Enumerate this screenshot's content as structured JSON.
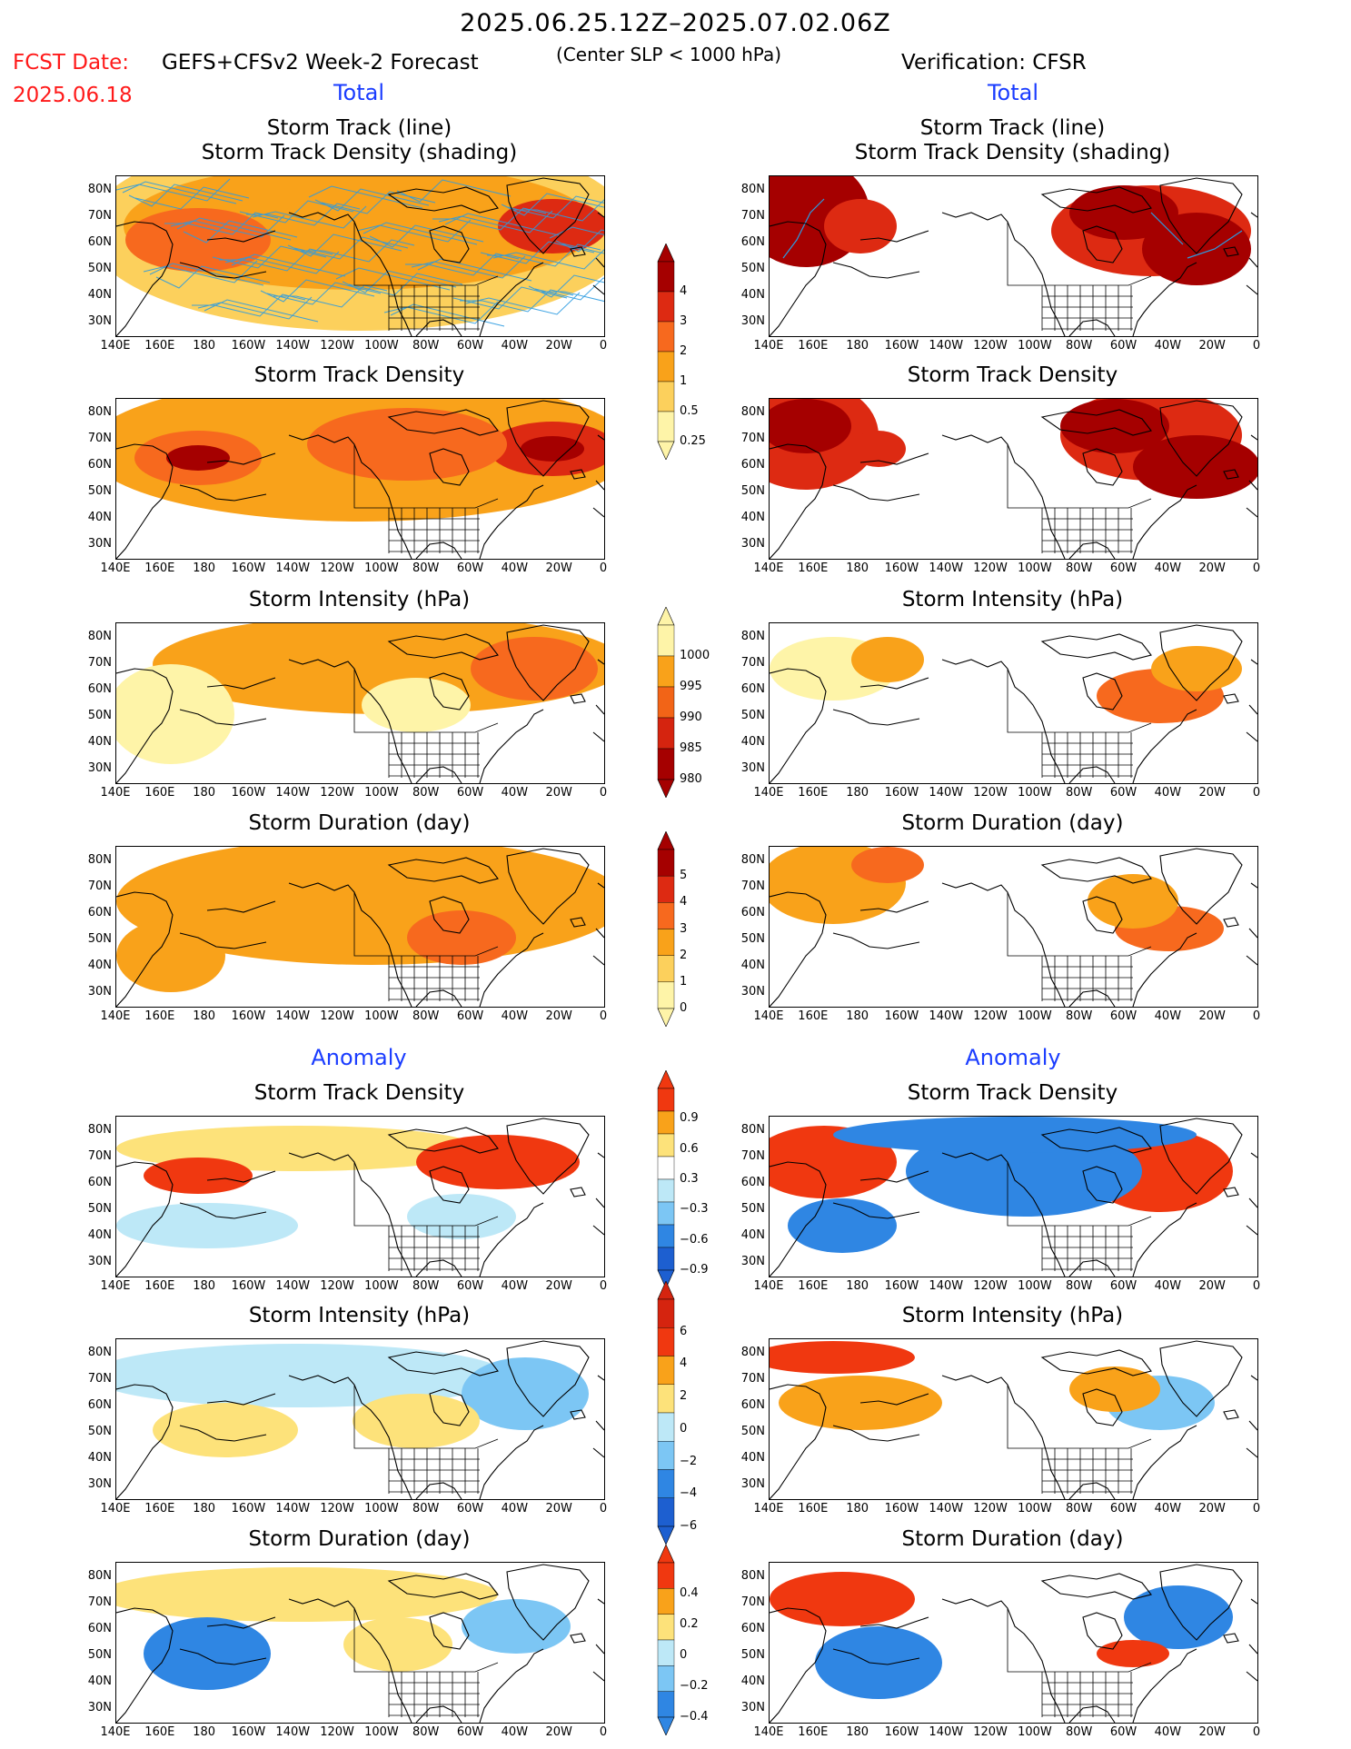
{
  "header": {
    "date_range": "2025.06.25.12Z–2025.07.02.06Z",
    "fcst_label": "FCST Date:",
    "fcst_date": "2025.06.18",
    "model": "GEFS+CFSv2 Week-2 Forecast",
    "slp_note": "(Center SLP < 1000 hPa)",
    "verification": "Verification: CFSR"
  },
  "sections": {
    "total_left": "Total",
    "total_right": "Total",
    "anomaly_left": "Anomaly",
    "anomaly_right": "Anomaly"
  },
  "panels": {
    "track_line": "Storm Track (line)",
    "track_shading": "Storm Track Density (shading)",
    "density": "Storm Track Density",
    "intensity": "Storm Intensity (hPa)",
    "duration": "Storm Duration (day)"
  },
  "axes": {
    "lat_ticks": [
      "80N",
      "70N",
      "60N",
      "50N",
      "40N",
      "30N"
    ],
    "lon_ticks": [
      "140E",
      "160E",
      "180",
      "160W",
      "140W",
      "120W",
      "100W",
      "80W",
      "60W",
      "40W",
      "20W",
      "0"
    ]
  },
  "colorbars": {
    "density_total": {
      "labels": [
        "4",
        "3",
        "2",
        "1",
        "0.5",
        "0.25"
      ],
      "colors": [
        "#a50000",
        "#dd2a12",
        "#f7691e",
        "#f9a21a",
        "#fcd05c",
        "#fef4a8"
      ]
    },
    "intensity_total": {
      "labels": [
        "1000",
        "995",
        "990",
        "985",
        "980"
      ],
      "colors": [
        "#fef4a8",
        "#f9a21a",
        "#f26417",
        "#d5240f",
        "#a50000"
      ]
    },
    "duration_total": {
      "labels": [
        "5",
        "4",
        "3",
        "2",
        "1",
        "0"
      ],
      "colors": [
        "#a50000",
        "#dd2a12",
        "#f7691e",
        "#f9a21a",
        "#fcd05c",
        "#fef4a8"
      ]
    },
    "density_anom": {
      "labels": [
        "0.9",
        "0.6",
        "0.3",
        "−0.3",
        "−0.6",
        "−0.9"
      ],
      "colors": [
        "#f03810",
        "#f9a21a",
        "#fde27a",
        "#ffffff",
        "#bde8f7",
        "#7cc6f4",
        "#2f86e3",
        "#1d5fd0"
      ]
    },
    "intensity_anom": {
      "labels": [
        "6",
        "4",
        "2",
        "0",
        "−2",
        "−4",
        "−6"
      ],
      "colors": [
        "#d5240f",
        "#f03810",
        "#f9a21a",
        "#fde27a",
        "#bde8f7",
        "#7cc6f4",
        "#2f86e3",
        "#1d5fd0"
      ]
    },
    "duration_anom": {
      "labels": [
        "0.4",
        "0.2",
        "0",
        "−0.2",
        "−0.4"
      ],
      "colors": [
        "#f03810",
        "#f9a21a",
        "#fde27a",
        "#bde8f7",
        "#7cc6f4",
        "#2f86e3"
      ]
    }
  }
}
